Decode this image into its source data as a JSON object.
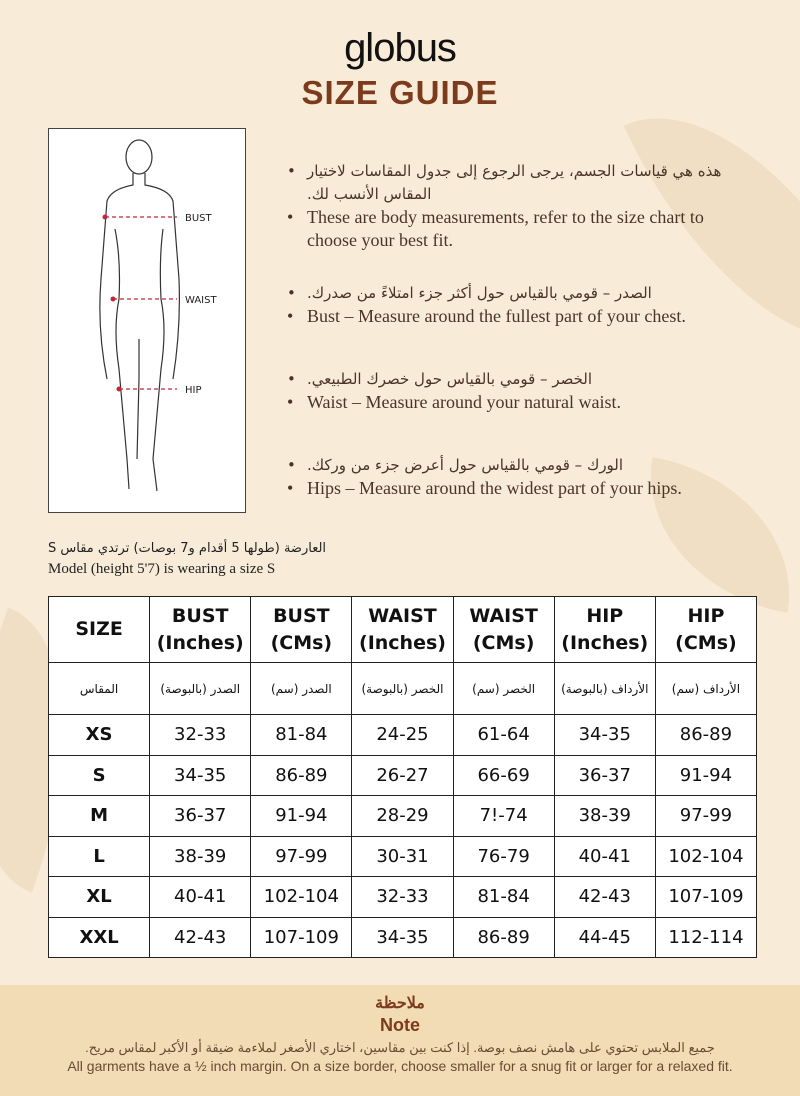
{
  "brand": "globus",
  "title": "SIZE GUIDE",
  "figure": {
    "labels": [
      "BUST",
      "WAIST",
      "HIP"
    ]
  },
  "bullets": [
    {
      "ar": "هذه هي قياسات الجسم، يرجى الرجوع إلى جدول المقاسات لاختيار المقاس الأنسب لك.",
      "en": "These are body measurements, refer to the size chart to choose your best fit."
    },
    {
      "ar": "الصدر – قومي بالقياس حول أكثر جزء امتلاءً من صدرك.",
      "en": "Bust – Measure around the fullest part of your chest."
    },
    {
      "ar": "الخصر – قومي بالقياس حول خصرك الطبيعي.",
      "en": "Waist – Measure around your natural waist."
    },
    {
      "ar": "الورك – قومي بالقياس حول أعرض جزء من وركك.",
      "en": "Hips – Measure around the widest part of your hips."
    }
  ],
  "model": {
    "ar": "العارضة (طولها 5 أقدام و7 بوصات) ترتدي مقاس S",
    "en": "Model (height 5'7) is wearing a size S"
  },
  "table": {
    "headers": [
      "SIZE",
      "BUST (Inches)",
      "BUST (CMs)",
      "WAIST (Inches)",
      "WAIST (CMs)",
      "HIP (Inches)",
      "HIP (CMs)"
    ],
    "headers_ar": [
      "المقاس",
      "الصدر (بالبوصة)",
      "الصدر (سم)",
      "الخصر (بالبوصة)",
      "الخصر (سم)",
      "الأرداف (بالبوصة)",
      "الأرداف (سم)"
    ],
    "rows": [
      [
        "XS",
        "32-33",
        "81-84",
        "24-25",
        "61-64",
        "34-35",
        "86-89"
      ],
      [
        "S",
        "34-35",
        "86-89",
        "26-27",
        "66-69",
        "36-37",
        "91-94"
      ],
      [
        "M",
        "36-37",
        "91-94",
        "28-29",
        "7!-74",
        "38-39",
        "97-99"
      ],
      [
        "L",
        "38-39",
        "97-99",
        "30-31",
        "76-79",
        "40-41",
        "102-104"
      ],
      [
        "XL",
        "40-41",
        "102-104",
        "32-33",
        "81-84",
        "42-43",
        "107-109"
      ],
      [
        "XXL",
        "42-43",
        "107-109",
        "34-35",
        "86-89",
        "44-45",
        "112-114"
      ]
    ]
  },
  "note": {
    "title_ar": "ملاحظة",
    "title": "Note",
    "text_ar": "جميع الملابس تحتوي على هامش نصف بوصة. إذا كنت بين مقاسين، اختاري الأصغر لملاءمة ضيقة أو الأكبر لمقاس مريح.",
    "text": "All garments have a ½ inch margin. On a size border, choose smaller for a snug fit or larger for a relaxed fit."
  },
  "colors": {
    "background": "#f8ecd9",
    "accent": "#7b3b1c",
    "note_band": "#f1dcb5"
  }
}
